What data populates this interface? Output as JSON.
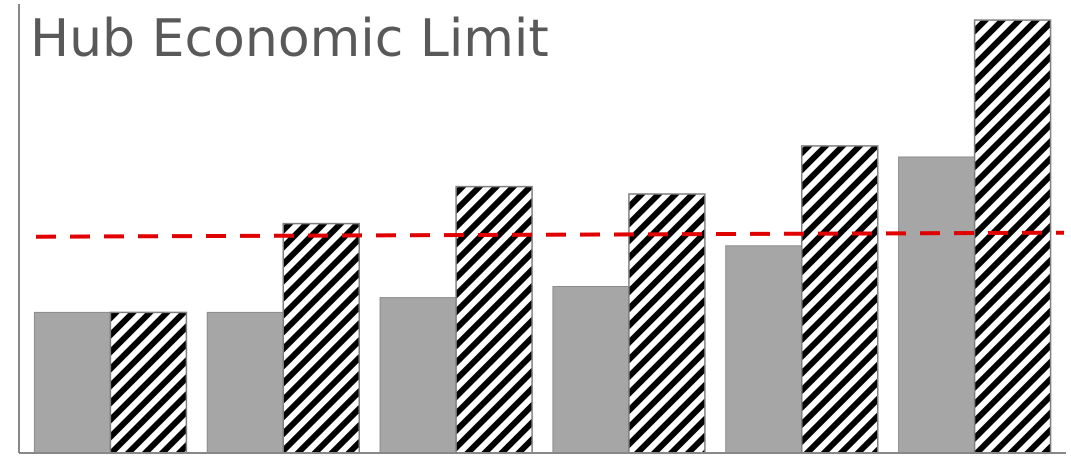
{
  "chart_data": {
    "type": "bar",
    "title": "Hub Economic Limit",
    "xlabel": "",
    "ylabel": "",
    "categories": [
      "",
      "",
      "",
      "",
      "",
      ""
    ],
    "series": [
      {
        "style": "solid",
        "color": "#a6a6a6",
        "values": [
          38,
          38,
          42,
          45,
          56,
          80
        ]
      },
      {
        "style": "hatched",
        "color": "#000000",
        "values": [
          38,
          62,
          72,
          70,
          83,
          117
        ]
      }
    ],
    "reference_line": {
      "value": 59,
      "color": "#e00000",
      "style": "dashed"
    },
    "ylim": [
      0,
      120
    ],
    "grid": false,
    "legend": "none"
  }
}
